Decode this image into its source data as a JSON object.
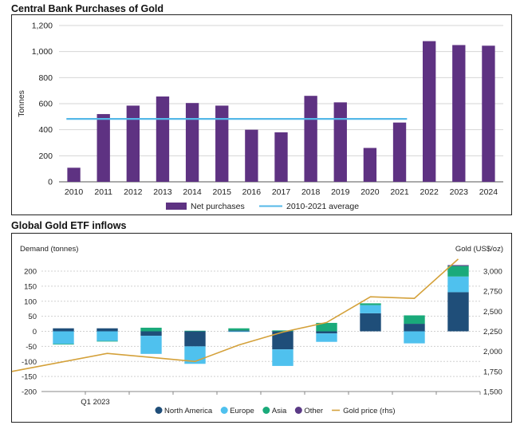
{
  "chart_data": [
    {
      "type": "bar",
      "title": "Central Bank Purchases of Gold",
      "ylabel": "Tonnes",
      "categories": [
        "2010",
        "2011",
        "2012",
        "2013",
        "2014",
        "2015",
        "2016",
        "2017",
        "2018",
        "2019",
        "2020",
        "2021",
        "2022",
        "2023",
        "2024"
      ],
      "ylim": [
        0,
        1200
      ],
      "yticks": [
        "0",
        "200",
        "400",
        "600",
        "800",
        "1,000",
        "1,200"
      ],
      "grid": true,
      "legend_placement": "bottom",
      "series": [
        {
          "name": "Net purchases",
          "type": "bar",
          "color": "#5e3282",
          "values": [
            108,
            520,
            585,
            655,
            605,
            585,
            400,
            380,
            660,
            610,
            260,
            455,
            1080,
            1050,
            1045
          ]
        },
        {
          "name": "2010-2021 average",
          "type": "line",
          "color": "#55b8e8",
          "value": 483,
          "range": [
            "2010",
            "2021"
          ]
        }
      ]
    },
    {
      "type": "bar",
      "stacked": true,
      "title": "Global Gold ETF inflows",
      "ylabel": "Demand (tonnes)",
      "y2label": "Gold (US$/oz)",
      "ylim": [
        -200,
        200
      ],
      "yticks": [
        "-200",
        "-150",
        "-100",
        "-50",
        "0",
        "50",
        "100",
        "150",
        "200"
      ],
      "y2lim": [
        1500,
        3000
      ],
      "y2ticks": [
        "1,500",
        "1,750",
        "2,000",
        "2,250",
        "2,500",
        "2,750",
        "3,000"
      ],
      "x_tick_labels": [
        "Q1 2023"
      ],
      "grid": true,
      "legend_placement": "bottom",
      "series": [
        {
          "name": "North America",
          "color": "#1f4e79",
          "values": [
            10,
            10,
            -15,
            -50,
            3,
            -60,
            -7,
            60,
            25,
            130
          ]
        },
        {
          "name": "Europe",
          "color": "#4fc1ee",
          "values": [
            -42,
            -32,
            -60,
            -58,
            -2,
            -55,
            -28,
            27,
            -40,
            52
          ]
        },
        {
          "name": "Asia",
          "color": "#1aaa7a",
          "values": [
            -2,
            -2,
            12,
            2,
            7,
            3,
            28,
            6,
            28,
            35
          ]
        },
        {
          "name": "Other",
          "color": "#5b3a86",
          "values": [
            0,
            0,
            0,
            0,
            0,
            0,
            0,
            0,
            0,
            3
          ]
        },
        {
          "name": "Gold price (rhs)",
          "type": "line",
          "color": "#d4a13a",
          "values": [
            1750,
            1975,
            1925,
            1875,
            2080,
            2240,
            2360,
            2680,
            2660,
            3150
          ]
        }
      ]
    }
  ]
}
